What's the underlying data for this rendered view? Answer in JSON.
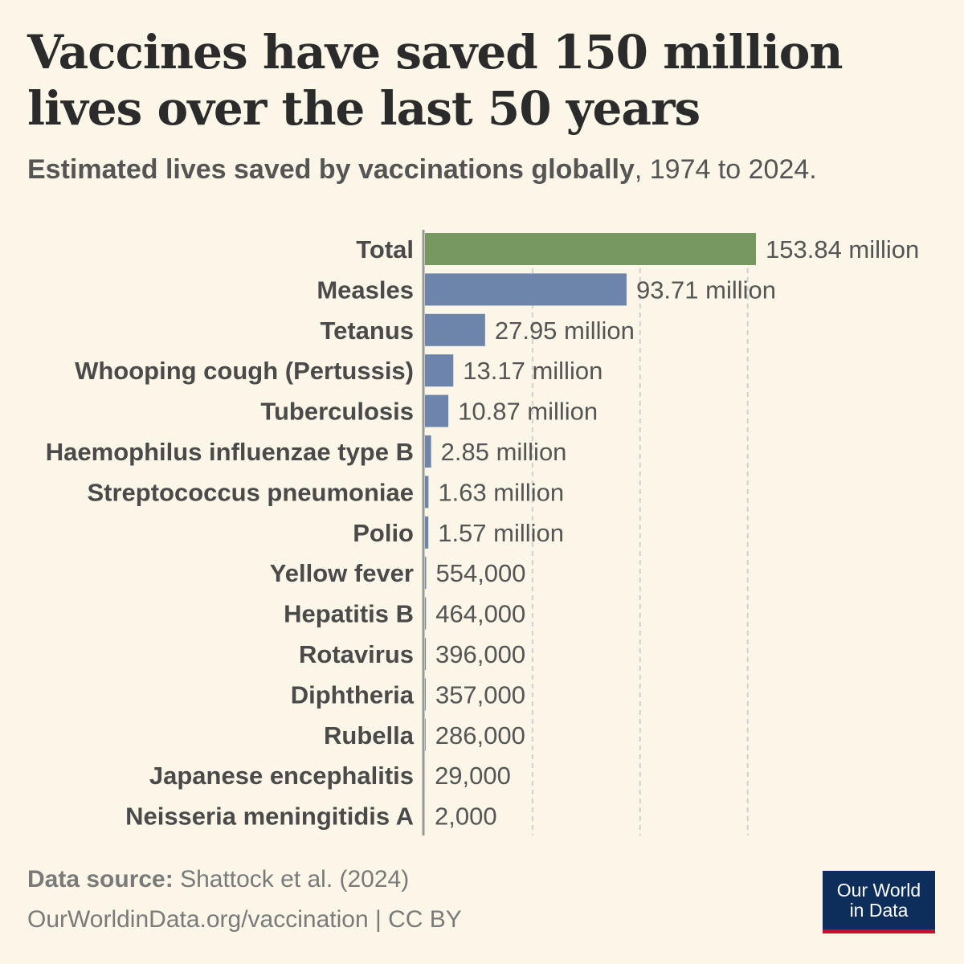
{
  "title": "Vaccines have saved 150 million lives over the last 50 years",
  "subtitle": {
    "strong": "Estimated lives saved by vaccinations globally",
    "rest": ", 1974 to 2024."
  },
  "chart_data": {
    "type": "bar",
    "orientation": "horizontal",
    "categories": [
      "Total",
      "Measles",
      "Tetanus",
      "Whooping cough (Pertussis)",
      "Tuberculosis",
      "Haemophilus influenzae type B",
      "Streptococcus pneumoniae",
      "Polio",
      "Yellow fever",
      "Hepatitis B",
      "Rotavirus",
      "Diphtheria",
      "Rubella",
      "Japanese encephalitis",
      "Neisseria meningitidis A"
    ],
    "values": [
      153840000,
      93710000,
      27950000,
      13170000,
      10870000,
      2850000,
      1630000,
      1570000,
      554000,
      464000,
      396000,
      357000,
      286000,
      29000,
      2000
    ],
    "value_labels": [
      "153.84 million",
      "93.71 million",
      "27.95 million",
      "13.17 million",
      "10.87 million",
      "2.85 million",
      "1.63 million",
      "1.57 million",
      "554,000",
      "464,000",
      "396,000",
      "357,000",
      "286,000",
      "29,000",
      "2,000"
    ],
    "colors": [
      "#77995f",
      "#6d84ab",
      "#6d84ab",
      "#6d84ab",
      "#6d84ab",
      "#6d84ab",
      "#6d84ab",
      "#6d84ab",
      "#6d84ab",
      "#6d84ab",
      "#6d84ab",
      "#6d84ab",
      "#6d84ab",
      "#6d84ab",
      "#6d84ab"
    ],
    "xlim": [
      0,
      160000000
    ],
    "gridlines": [
      50000000,
      100000000,
      150000000
    ],
    "grid": true
  },
  "footer": {
    "source_label": "Data source:",
    "source_text": " Shattock et al. (2024)",
    "url_license": "OurWorldinData.org/vaccination | CC BY"
  },
  "logo": {
    "line1": "Our World",
    "line2": "in Data"
  }
}
